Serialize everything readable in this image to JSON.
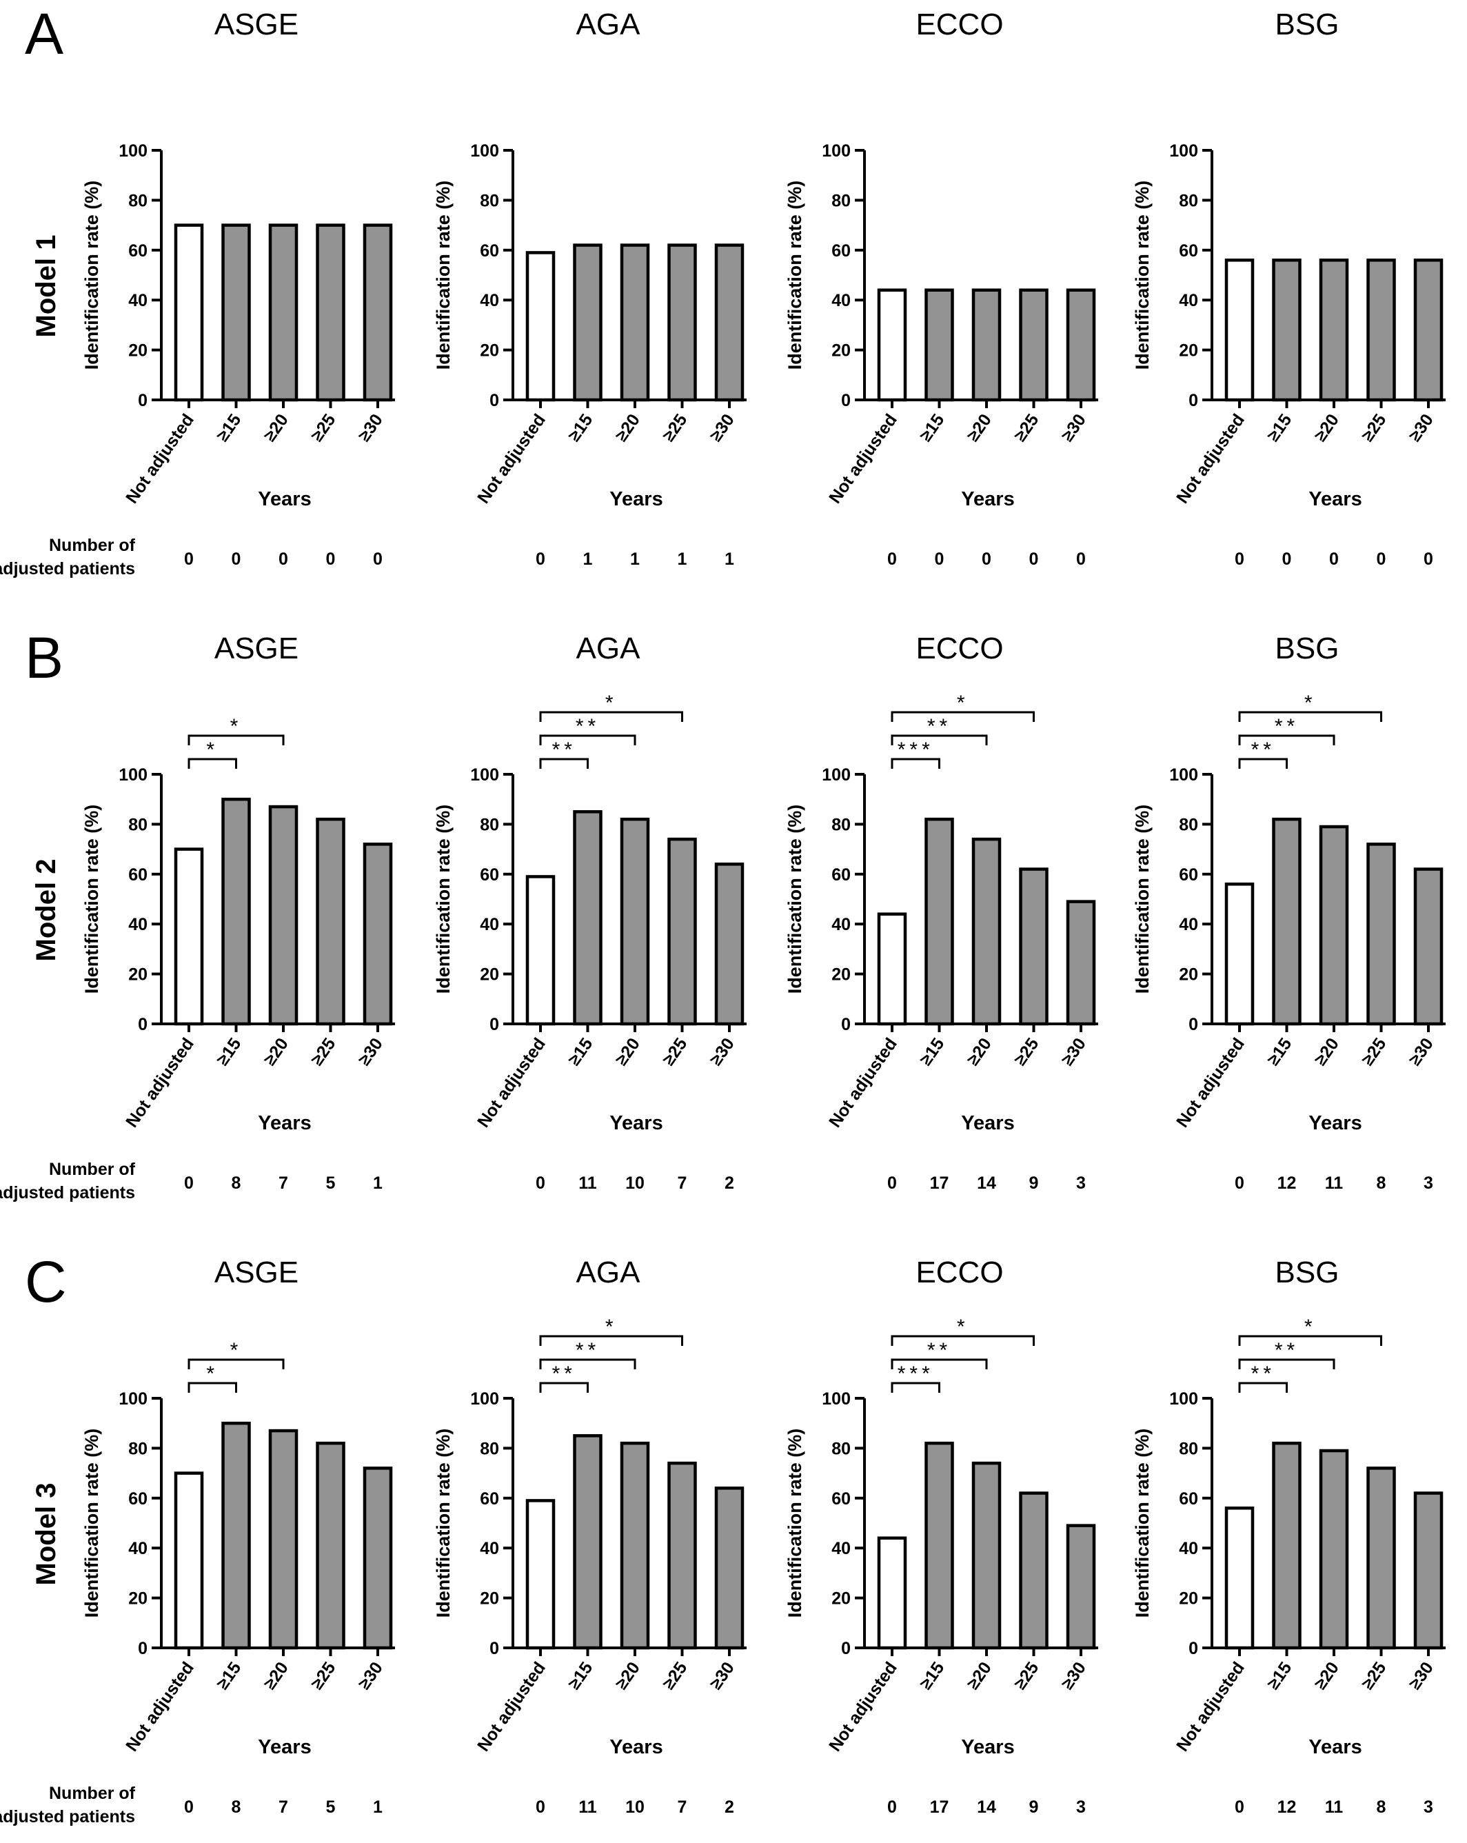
{
  "panels": [
    {
      "letter": "A",
      "model_label": "Model 1",
      "count_label": [
        "Number of",
        "adjusted patients"
      ],
      "charts": [
        {
          "title": "ASGE",
          "counts": [
            "0",
            "0",
            "0",
            "0",
            "0"
          ],
          "significance": []
        },
        {
          "title": "AGA",
          "counts": [
            "0",
            "1",
            "1",
            "1",
            "1"
          ],
          "significance": []
        },
        {
          "title": "ECCO",
          "counts": [
            "0",
            "0",
            "0",
            "0",
            "0"
          ],
          "significance": []
        },
        {
          "title": "BSG",
          "counts": [
            "0",
            "0",
            "0",
            "0",
            "0"
          ],
          "significance": []
        }
      ]
    },
    {
      "letter": "B",
      "model_label": "Model 2",
      "count_label": [
        "Number of",
        "adjusted patients"
      ],
      "charts": [
        {
          "title": "ASGE",
          "counts": [
            "0",
            "8",
            "7",
            "5",
            "1"
          ],
          "significance": [
            {
              "from": 0,
              "to": 1,
              "stars": "*"
            },
            {
              "from": 0,
              "to": 2,
              "stars": "*"
            }
          ]
        },
        {
          "title": "AGA",
          "counts": [
            "0",
            "11",
            "10",
            "7",
            "2"
          ],
          "significance": [
            {
              "from": 0,
              "to": 1,
              "stars": "**"
            },
            {
              "from": 0,
              "to": 2,
              "stars": "**"
            },
            {
              "from": 0,
              "to": 3,
              "stars": "*"
            }
          ]
        },
        {
          "title": "ECCO",
          "counts": [
            "0",
            "17",
            "14",
            "9",
            "3"
          ],
          "significance": [
            {
              "from": 0,
              "to": 1,
              "stars": "***"
            },
            {
              "from": 0,
              "to": 2,
              "stars": "**"
            },
            {
              "from": 0,
              "to": 3,
              "stars": "*"
            }
          ]
        },
        {
          "title": "BSG",
          "counts": [
            "0",
            "12",
            "11",
            "8",
            "3"
          ],
          "significance": [
            {
              "from": 0,
              "to": 1,
              "stars": "**"
            },
            {
              "from": 0,
              "to": 2,
              "stars": "**"
            },
            {
              "from": 0,
              "to": 3,
              "stars": "*"
            }
          ]
        }
      ]
    },
    {
      "letter": "C",
      "model_label": "Model 3",
      "count_label": [
        "Number of",
        "adjusted patients"
      ],
      "charts": [
        {
          "title": "ASGE",
          "counts": [
            "0",
            "8",
            "7",
            "5",
            "1"
          ],
          "significance": [
            {
              "from": 0,
              "to": 1,
              "stars": "*"
            },
            {
              "from": 0,
              "to": 2,
              "stars": "*"
            }
          ]
        },
        {
          "title": "AGA",
          "counts": [
            "0",
            "11",
            "10",
            "7",
            "2"
          ],
          "significance": [
            {
              "from": 0,
              "to": 1,
              "stars": "**"
            },
            {
              "from": 0,
              "to": 2,
              "stars": "**"
            },
            {
              "from": 0,
              "to": 3,
              "stars": "*"
            }
          ]
        },
        {
          "title": "ECCO",
          "counts": [
            "0",
            "17",
            "14",
            "9",
            "3"
          ],
          "significance": [
            {
              "from": 0,
              "to": 1,
              "stars": "***"
            },
            {
              "from": 0,
              "to": 2,
              "stars": "**"
            },
            {
              "from": 0,
              "to": 3,
              "stars": "*"
            }
          ]
        },
        {
          "title": "BSG",
          "counts": [
            "0",
            "12",
            "11",
            "8",
            "3"
          ],
          "significance": [
            {
              "from": 0,
              "to": 1,
              "stars": "**"
            },
            {
              "from": 0,
              "to": 2,
              "stars": "**"
            },
            {
              "from": 0,
              "to": 3,
              "stars": "*"
            }
          ]
        }
      ]
    }
  ],
  "colors": {
    "not_adjusted": "#ffffff",
    "adjusted": "#939393",
    "outline": "#000000"
  },
  "chart_data": [
    {
      "panel": "A",
      "title": "ASGE",
      "type": "bar",
      "categories": [
        "Not adjusted",
        "≥15",
        "≥20",
        "≥25",
        "≥30"
      ],
      "values": [
        70,
        70,
        70,
        70,
        70
      ],
      "ylabel": "Identification rate (%)",
      "xlabel": "Years",
      "ylim": [
        0,
        100
      ],
      "yticks": [
        0,
        20,
        40,
        60,
        80,
        100
      ]
    },
    {
      "panel": "A",
      "title": "AGA",
      "type": "bar",
      "categories": [
        "Not adjusted",
        "≥15",
        "≥20",
        "≥25",
        "≥30"
      ],
      "values": [
        59,
        62,
        62,
        62,
        62
      ],
      "ylabel": "Identification rate (%)",
      "xlabel": "Years",
      "ylim": [
        0,
        100
      ],
      "yticks": [
        0,
        20,
        40,
        60,
        80,
        100
      ]
    },
    {
      "panel": "A",
      "title": "ECCO",
      "type": "bar",
      "categories": [
        "Not adjusted",
        "≥15",
        "≥20",
        "≥25",
        "≥30"
      ],
      "values": [
        44,
        44,
        44,
        44,
        44
      ],
      "ylabel": "Identification rate (%)",
      "xlabel": "Years",
      "ylim": [
        0,
        100
      ],
      "yticks": [
        0,
        20,
        40,
        60,
        80,
        100
      ]
    },
    {
      "panel": "A",
      "title": "BSG",
      "type": "bar",
      "categories": [
        "Not adjusted",
        "≥15",
        "≥20",
        "≥25",
        "≥30"
      ],
      "values": [
        56,
        56,
        56,
        56,
        56
      ],
      "ylabel": "Identification rate (%)",
      "xlabel": "Years",
      "ylim": [
        0,
        100
      ],
      "yticks": [
        0,
        20,
        40,
        60,
        80,
        100
      ]
    },
    {
      "panel": "B",
      "title": "ASGE",
      "type": "bar",
      "categories": [
        "Not adjusted",
        "≥15",
        "≥20",
        "≥25",
        "≥30"
      ],
      "values": [
        70,
        90,
        87,
        82,
        72
      ],
      "ylabel": "Identification rate (%)",
      "xlabel": "Years",
      "ylim": [
        0,
        100
      ],
      "yticks": [
        0,
        20,
        40,
        60,
        80,
        100
      ]
    },
    {
      "panel": "B",
      "title": "AGA",
      "type": "bar",
      "categories": [
        "Not adjusted",
        "≥15",
        "≥20",
        "≥25",
        "≥30"
      ],
      "values": [
        59,
        85,
        82,
        74,
        64
      ],
      "ylabel": "Identification rate (%)",
      "xlabel": "Years",
      "ylim": [
        0,
        100
      ],
      "yticks": [
        0,
        20,
        40,
        60,
        80,
        100
      ]
    },
    {
      "panel": "B",
      "title": "ECCO",
      "type": "bar",
      "categories": [
        "Not adjusted",
        "≥15",
        "≥20",
        "≥25",
        "≥30"
      ],
      "values": [
        44,
        82,
        74,
        62,
        49
      ],
      "ylabel": "Identification rate (%)",
      "xlabel": "Years",
      "ylim": [
        0,
        100
      ],
      "yticks": [
        0,
        20,
        40,
        60,
        80,
        100
      ]
    },
    {
      "panel": "B",
      "title": "BSG",
      "type": "bar",
      "categories": [
        "Not adjusted",
        "≥15",
        "≥20",
        "≥25",
        "≥30"
      ],
      "values": [
        56,
        82,
        79,
        72,
        62
      ],
      "ylabel": "Identification rate (%)",
      "xlabel": "Years",
      "ylim": [
        0,
        100
      ],
      "yticks": [
        0,
        20,
        40,
        60,
        80,
        100
      ]
    },
    {
      "panel": "C",
      "title": "ASGE",
      "type": "bar",
      "categories": [
        "Not adjusted",
        "≥15",
        "≥20",
        "≥25",
        "≥30"
      ],
      "values": [
        70,
        90,
        87,
        82,
        72
      ],
      "ylabel": "Identification rate (%)",
      "xlabel": "Years",
      "ylim": [
        0,
        100
      ],
      "yticks": [
        0,
        20,
        40,
        60,
        80,
        100
      ]
    },
    {
      "panel": "C",
      "title": "AGA",
      "type": "bar",
      "categories": [
        "Not adjusted",
        "≥15",
        "≥20",
        "≥25",
        "≥30"
      ],
      "values": [
        59,
        85,
        82,
        74,
        64
      ],
      "ylabel": "Identification rate (%)",
      "xlabel": "Years",
      "ylim": [
        0,
        100
      ],
      "yticks": [
        0,
        20,
        40,
        60,
        80,
        100
      ]
    },
    {
      "panel": "C",
      "title": "ECCO",
      "type": "bar",
      "categories": [
        "Not adjusted",
        "≥15",
        "≥20",
        "≥25",
        "≥30"
      ],
      "values": [
        44,
        82,
        74,
        62,
        49
      ],
      "ylabel": "Identification rate (%)",
      "xlabel": "Years",
      "ylim": [
        0,
        100
      ],
      "yticks": [
        0,
        20,
        40,
        60,
        80,
        100
      ]
    },
    {
      "panel": "C",
      "title": "BSG",
      "type": "bar",
      "categories": [
        "Not adjusted",
        "≥15",
        "≥20",
        "≥25",
        "≥30"
      ],
      "values": [
        56,
        82,
        79,
        72,
        62
      ],
      "ylabel": "Identification rate (%)",
      "xlabel": "Years",
      "ylim": [
        0,
        100
      ],
      "yticks": [
        0,
        20,
        40,
        60,
        80,
        100
      ]
    }
  ]
}
